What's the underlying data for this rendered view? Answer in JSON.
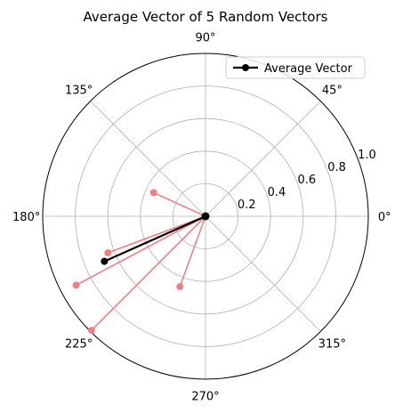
{
  "chart_data": {
    "type": "polar-vectors",
    "title": "Average Vector of 5 Random Vectors",
    "r_lim": [
      0,
      1.0
    ],
    "r_ticks": [
      0.2,
      0.4,
      0.6,
      0.8,
      1.0
    ],
    "r_tick_labels": [
      "0.2",
      "0.4",
      "0.6",
      "0.8",
      "1.0"
    ],
    "theta_ticks_deg": [
      0,
      45,
      90,
      135,
      180,
      225,
      270,
      315
    ],
    "theta_tick_labels": [
      "0°",
      "45°",
      "90°",
      "135°",
      "180°",
      "225°",
      "270°",
      "315°"
    ],
    "grid": true,
    "legend": {
      "placement": "upper-right",
      "entries": [
        "Average Vector"
      ]
    },
    "series": [
      {
        "name": "",
        "role": "random-vectors",
        "color": "#f08080",
        "vectors": [
          {
            "theta_deg": 208.0,
            "r": 0.9
          },
          {
            "theta_deg": 225.0,
            "r": 0.99
          },
          {
            "theta_deg": 250.0,
            "r": 0.46
          },
          {
            "theta_deg": 200.5,
            "r": 0.64
          },
          {
            "theta_deg": 155.5,
            "r": 0.35
          }
        ]
      },
      {
        "name": "Average Vector",
        "role": "average-vector",
        "color": "#000000",
        "vectors": [
          {
            "theta_deg": 204.0,
            "r": 0.68
          }
        ]
      }
    ]
  }
}
